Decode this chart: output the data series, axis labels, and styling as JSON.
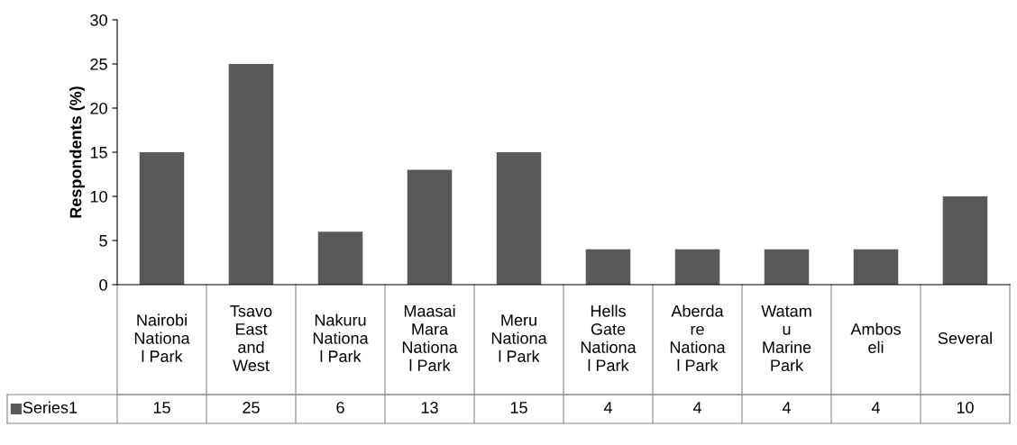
{
  "chart_data": {
    "type": "bar",
    "ylabel": "Respondents (%)",
    "categories": [
      "Nairobi\nNationa\nl Park",
      "Tsavo\nEast\nand\nWest",
      "Nakuru\nNationa\nl Park",
      "Maasai\nMara\nNationa\nl Park",
      "Meru\nNationa\nl Park",
      "Hells\nGate\nNationa\nl Park",
      "Aberda\nre\nNationa\nl Park",
      "Watam\nu\nMarine\nPark",
      "Ambos\neli",
      "Several"
    ],
    "series": [
      {
        "name": "Series1",
        "color": "#595959",
        "values": [
          15,
          25,
          6,
          13,
          15,
          4,
          4,
          4,
          4,
          10
        ]
      }
    ],
    "ylim": [
      0,
      30
    ],
    "yticks": [
      0,
      5,
      10,
      15,
      20,
      25,
      30
    ],
    "grid": false,
    "data_labels": true,
    "legend": "bottom left"
  }
}
